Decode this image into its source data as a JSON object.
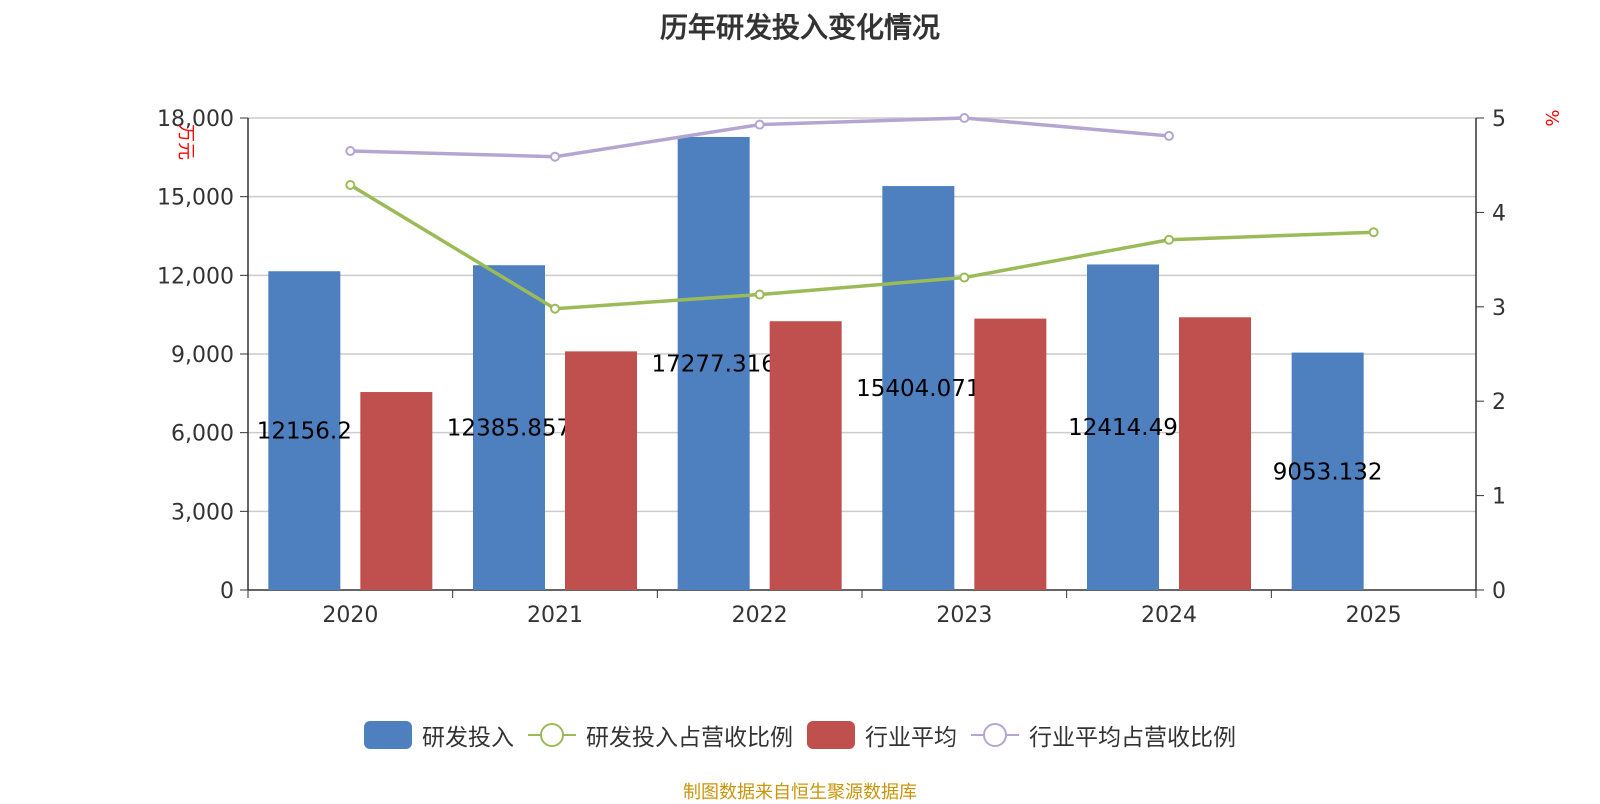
{
  "title": "历年研发投入变化情况",
  "source": "制图数据来自恒生聚源数据库",
  "legend": {
    "rd": "研发投入",
    "rd_ratio": "研发投入占营收比例",
    "industry": "行业平均",
    "industry_ratio": "行业平均占营收比例"
  },
  "colors": {
    "rd": "#4e7fbe",
    "industry": "#c0504d",
    "rd_ratio": "#9bbb59",
    "industry_ratio": "#b5a6d1"
  },
  "chart_data": {
    "type": "bar",
    "categories": [
      "2020",
      "2021",
      "2022",
      "2023",
      "2024",
      "2025"
    ],
    "left_axis": {
      "unit": "万元",
      "ylim": [
        0,
        18000
      ],
      "ticks": [
        "0",
        "3,000",
        "6,000",
        "9,000",
        "12,000",
        "15,000",
        "18,000"
      ]
    },
    "right_axis": {
      "unit": "%",
      "ylim": [
        0,
        5
      ],
      "ticks": [
        "0",
        "1",
        "2",
        "3",
        "4",
        "5"
      ]
    },
    "series": [
      {
        "name": "研发投入",
        "type": "bar",
        "axis": "left",
        "values": [
          12156.2,
          12385.857,
          17277.316,
          15404.071,
          12414.49,
          9053.132
        ],
        "labels": [
          "12156.2",
          "12385.857",
          "17277.316",
          "15404.071",
          "12414.49",
          "9053.132"
        ]
      },
      {
        "name": "行业平均",
        "type": "bar",
        "axis": "left",
        "values": [
          7550,
          9100,
          10250,
          10350,
          10400,
          null
        ]
      },
      {
        "name": "研发投入占营收比例",
        "type": "line",
        "axis": "right",
        "values": [
          4.29,
          2.98,
          3.13,
          3.31,
          3.71,
          3.79
        ]
      },
      {
        "name": "行业平均占营收比例",
        "type": "line",
        "axis": "right",
        "values": [
          4.65,
          4.59,
          4.93,
          5.0,
          4.81,
          null
        ]
      }
    ],
    "grid": true,
    "legend_position": "bottom"
  }
}
